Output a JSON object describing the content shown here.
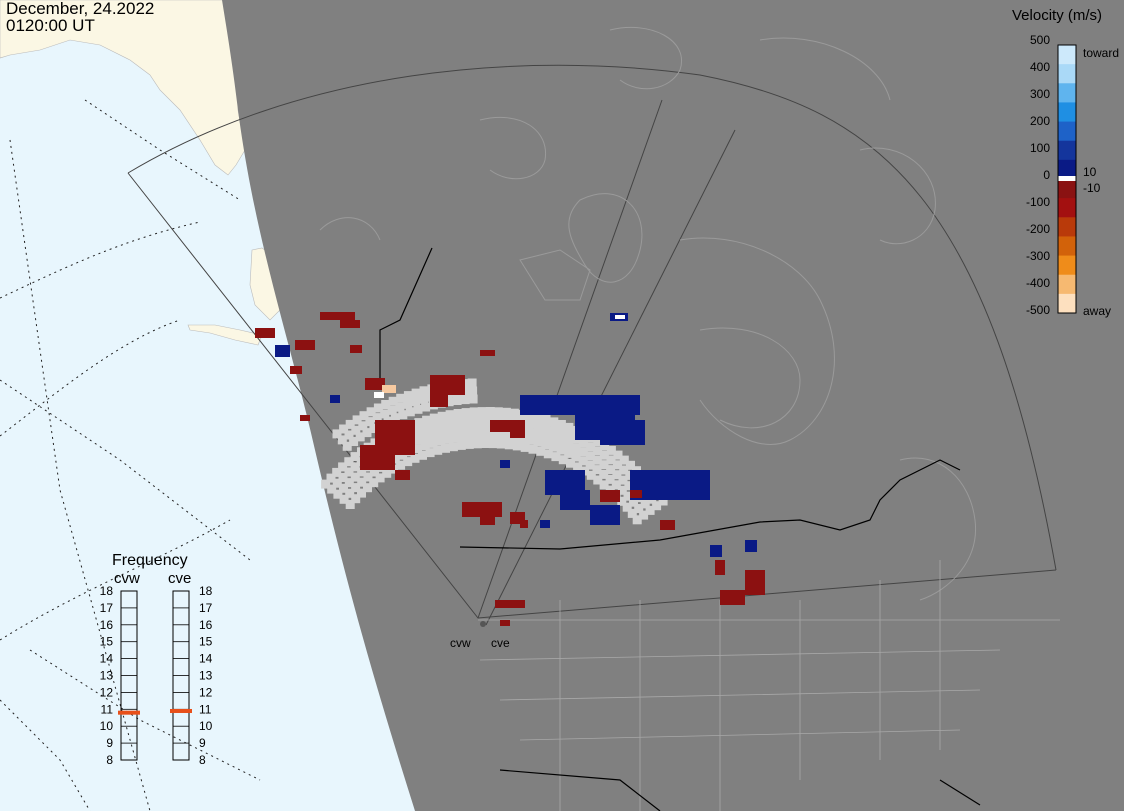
{
  "header": {
    "date": "December, 24.2022",
    "time": "0120:00 UT"
  },
  "velocity_legend": {
    "title": "Velocity (m/s)",
    "ticks": [
      "500",
      "400",
      "300",
      "200",
      "100",
      "0",
      "-100",
      "-200",
      "-300",
      "-400",
      "-500"
    ],
    "toward_label": "toward",
    "away_label": "away",
    "pos_threshold": "10",
    "neg_threshold": "-10",
    "colors": [
      "#cde9fb",
      "#aad9f7",
      "#5fb4ee",
      "#1f8fe3",
      "#1e62c8",
      "#14359c",
      "#0a1a85",
      "#8a1212",
      "#a31010",
      "#b93a0a",
      "#d2620a",
      "#ef8c1a",
      "#f6b971",
      "#fde0bf"
    ]
  },
  "frequency_panel": {
    "title": "Frequency",
    "radars": [
      {
        "name": "cvw",
        "value_mhz": 10.8
      },
      {
        "name": "cve",
        "value_mhz": 10.9
      }
    ],
    "scale": [
      "18",
      "17",
      "16",
      "15",
      "14",
      "13",
      "12",
      "11",
      "10",
      "9",
      "8"
    ]
  },
  "radar_sites": [
    {
      "name": "cvw"
    },
    {
      "name": "cve"
    }
  ],
  "colors": {
    "ocean": "#e8f6fd",
    "land_outside": "#fbf7e4",
    "night_region": "#808080",
    "ground_scatter": "#d2d2d2",
    "dark_blue": "#0a1a85",
    "dark_red": "#8c1111",
    "freq_marker": "#e8501a"
  }
}
